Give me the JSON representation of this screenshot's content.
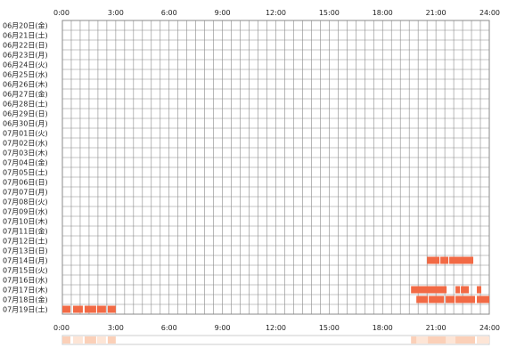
{
  "chart_data": {
    "type": "heatmap",
    "title": "",
    "xlabel": "",
    "ylabel": "",
    "x_range": [
      0,
      24
    ],
    "x_ticks": [
      "0:00",
      "3:00",
      "6:00",
      "9:00",
      "12:00",
      "15:00",
      "18:00",
      "21:00",
      "24:00"
    ],
    "grid": true,
    "rows": [
      "06月20日(金)",
      "06月21日(土)",
      "06月22日(日)",
      "06月23日(月)",
      "06月24日(火)",
      "06月25日(水)",
      "06月26日(木)",
      "06月27日(金)",
      "06月28日(土)",
      "06月29日(日)",
      "06月30日(月)",
      "07月01日(火)",
      "07月02日(水)",
      "07月03日(木)",
      "07月04日(金)",
      "07月05日(土)",
      "07月06日(日)",
      "07月07日(月)",
      "07月08日(火)",
      "07月09日(水)",
      "07月10日(木)",
      "07月11日(金)",
      "07月12日(土)",
      "07月13日(日)",
      "07月14日(月)",
      "07月15日(火)",
      "07月16日(水)",
      "07月17日(木)",
      "07月18日(金)",
      "07月19日(土)"
    ],
    "activity": [
      {
        "row": "07月14日(月)",
        "intervals": [
          [
            20.5,
            21.2
          ],
          [
            21.25,
            21.7
          ],
          [
            21.75,
            23.1
          ]
        ]
      },
      {
        "row": "07月17日(木)",
        "intervals": [
          [
            19.6,
            21.6
          ],
          [
            22.1,
            22.35
          ],
          [
            22.4,
            22.85
          ],
          [
            23.3,
            23.55
          ]
        ]
      },
      {
        "row": "07月18日(金)",
        "intervals": [
          [
            19.9,
            20.55
          ],
          [
            20.6,
            21.45
          ],
          [
            21.55,
            22.05
          ],
          [
            22.1,
            23.2
          ],
          [
            23.3,
            24.0
          ]
        ]
      },
      {
        "row": "07月19日(土)",
        "intervals": [
          [
            0.0,
            0.45
          ],
          [
            0.6,
            1.15
          ],
          [
            1.25,
            1.9
          ],
          [
            1.95,
            2.45
          ],
          [
            2.55,
            3.0
          ]
        ]
      }
    ],
    "summary_bar": {
      "colors": [
        "#fde5d6",
        "#fbd0b8"
      ]
    },
    "colors": {
      "activity": "#f26a45",
      "grid": "#8a8a8a",
      "frame": "#8a8a8a"
    }
  }
}
